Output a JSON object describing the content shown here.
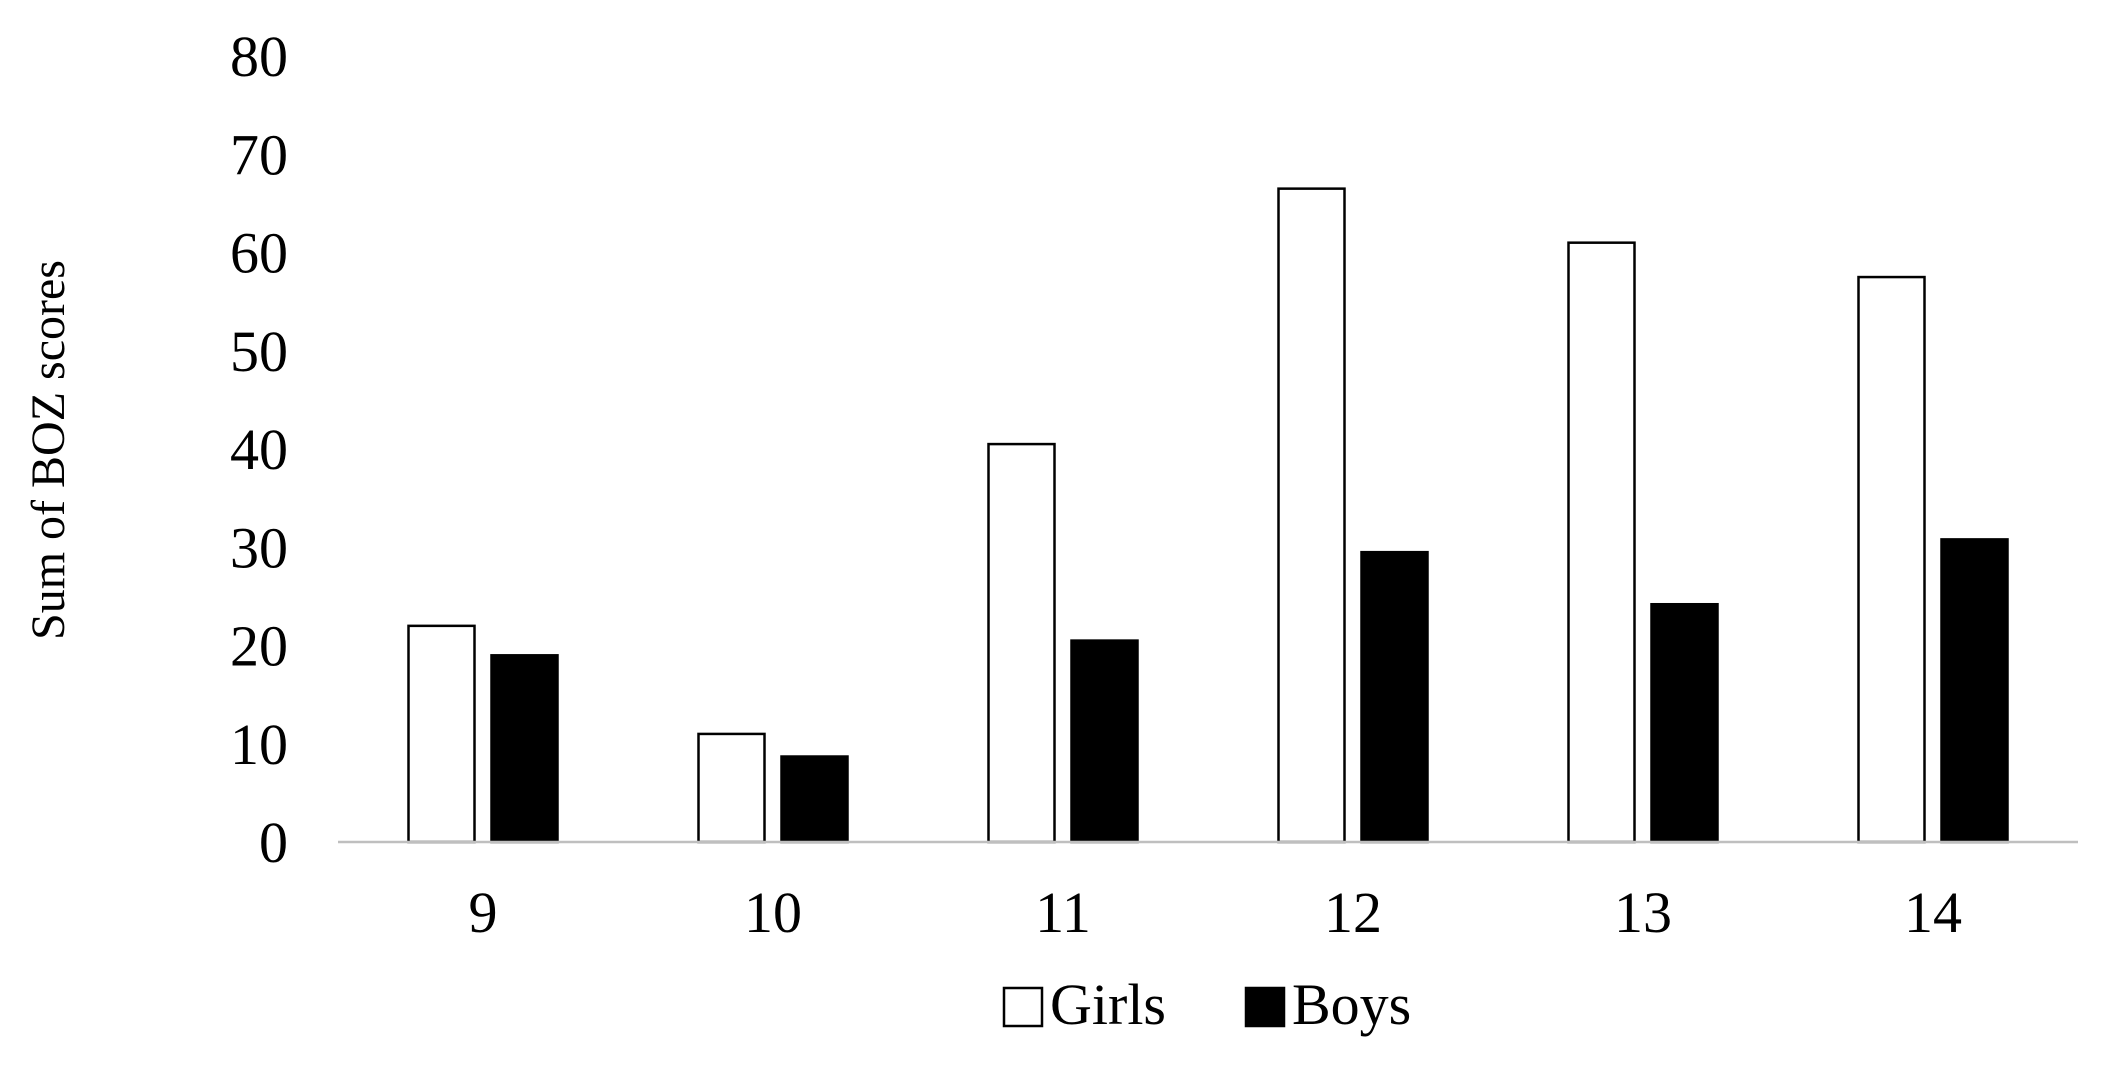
{
  "chart_data": {
    "type": "bar",
    "categories": [
      "9",
      "10",
      "11",
      "12",
      "13",
      "14"
    ],
    "series": [
      {
        "name": "Girls",
        "values": [
          22,
          11,
          40.5,
          66.5,
          61,
          57.5
        ],
        "fill": "#ffffff",
        "stroke": "#000000"
      },
      {
        "name": "Boys",
        "values": [
          19,
          8.7,
          20.5,
          29.5,
          24.2,
          30.8
        ],
        "fill": "#000000",
        "stroke": "#000000"
      }
    ],
    "title": "",
    "xlabel": "",
    "ylabel": "Sum of BOZ scores",
    "ylim": [
      0,
      80
    ],
    "yticks": [
      0,
      10,
      20,
      30,
      40,
      50,
      60,
      70,
      80
    ],
    "grid": false,
    "legend": "bottom-center"
  }
}
